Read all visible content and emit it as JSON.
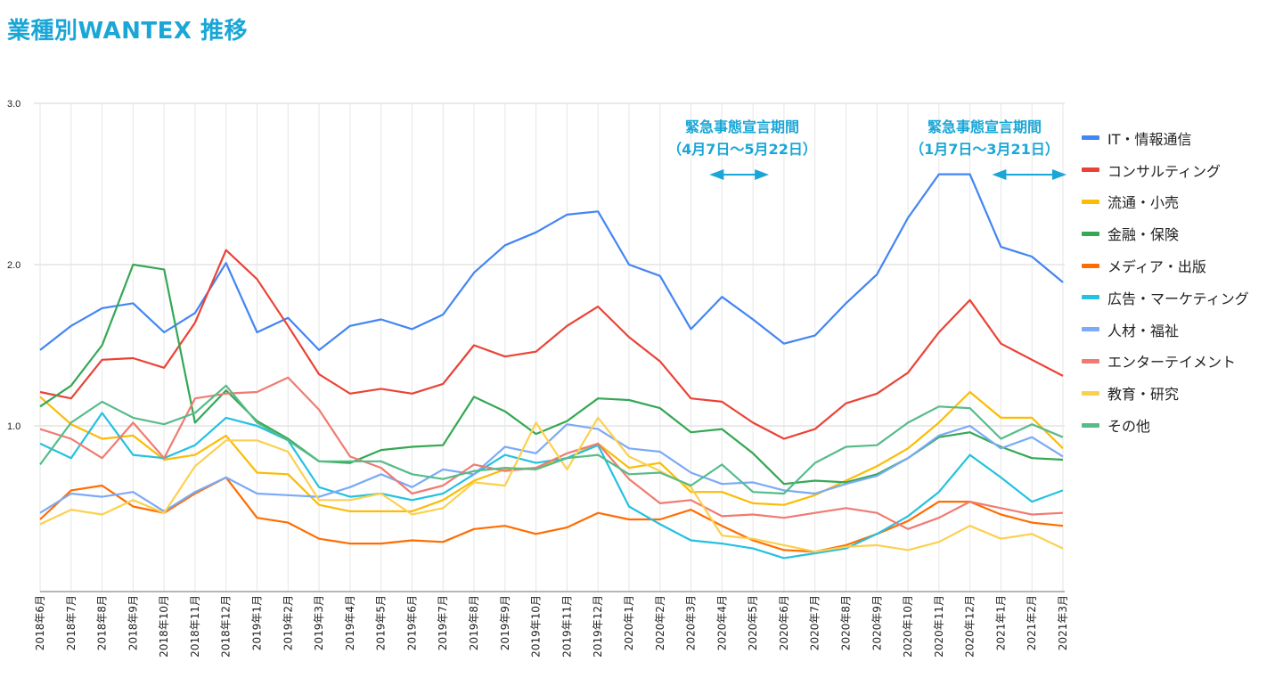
{
  "page": {
    "title": "業種別WANTEX 推移"
  },
  "annotations": [
    {
      "title": "緊急事態宣言期間",
      "period": "（4月7日〜5月22日）",
      "arrow_from": "2020年4月",
      "arrow_to": "2020年5月"
    },
    {
      "title": "緊急事態宣言期間",
      "period": "（1月7日〜3月21日）",
      "arrow_from": "2021年1月",
      "arrow_to": "2021年3月"
    }
  ],
  "chart_data": {
    "type": "line",
    "title": "業種別WANTEX 推移",
    "xlabel": "",
    "ylabel": "",
    "ylim": [
      0,
      3.0
    ],
    "yticks": [
      "3.0",
      "2.0",
      "1.0"
    ],
    "ytick_values": [
      3.0,
      2.0,
      1.0
    ],
    "grid": true,
    "legend_position": "right",
    "x": [
      "2018年6月",
      "2018年7月",
      "2018年8月",
      "2018年9月",
      "2018年10月",
      "2018年11月",
      "2018年12月",
      "2019年1月",
      "2019年2月",
      "2019年3月",
      "2019年4月",
      "2019年5月",
      "2019年6月",
      "2019年7月",
      "2019年8月",
      "2019年9月",
      "2019年10月",
      "2019年11月",
      "2019年12月",
      "2020年1月",
      "2020年2月",
      "2020年3月",
      "2020年4月",
      "2020年5月",
      "2020年6月",
      "2020年7月",
      "2020年8月",
      "2020年9月",
      "2020年10月",
      "2020年11月",
      "2020年12月",
      "2021年1月",
      "2021年2月",
      "2021年3月"
    ],
    "series": [
      {
        "name": "IT・情報通信",
        "color": "#4285f4",
        "values": [
          1.47,
          1.62,
          1.73,
          1.76,
          1.58,
          1.7,
          2.01,
          1.58,
          1.67,
          1.47,
          1.62,
          1.66,
          1.6,
          1.69,
          1.95,
          2.12,
          2.2,
          2.31,
          2.33,
          2.0,
          1.93,
          1.6,
          1.8,
          1.66,
          1.51,
          1.56,
          1.76,
          1.94,
          2.29,
          2.56,
          2.56,
          2.11,
          2.05,
          1.89
        ]
      },
      {
        "name": "コンサルティング",
        "color": "#ea4335",
        "values": [
          1.21,
          1.17,
          1.41,
          1.42,
          1.36,
          1.64,
          2.09,
          1.91,
          1.62,
          1.32,
          1.2,
          1.23,
          1.2,
          1.26,
          1.5,
          1.43,
          1.46,
          1.62,
          1.74,
          1.55,
          1.4,
          1.17,
          1.15,
          1.02,
          0.92,
          0.98,
          1.14,
          1.2,
          1.33,
          1.58,
          1.78,
          1.51,
          1.41,
          1.31
        ]
      },
      {
        "name": "流通・小売",
        "color": "#fbbc04",
        "values": [
          1.18,
          1.01,
          0.92,
          0.94,
          0.79,
          0.82,
          0.94,
          0.71,
          0.7,
          0.51,
          0.47,
          0.47,
          0.47,
          0.54,
          0.66,
          0.73,
          0.74,
          0.8,
          0.89,
          0.74,
          0.77,
          0.59,
          0.59,
          0.52,
          0.51,
          0.57,
          0.66,
          0.75,
          0.86,
          1.02,
          1.21,
          1.05,
          1.05,
          0.86
        ]
      },
      {
        "name": "金融・保険",
        "color": "#34a853",
        "values": [
          1.12,
          1.25,
          1.5,
          2.0,
          1.97,
          1.02,
          1.22,
          1.03,
          0.92,
          0.78,
          0.77,
          0.85,
          0.87,
          0.88,
          1.18,
          1.09,
          0.95,
          1.03,
          1.17,
          1.16,
          1.11,
          0.96,
          0.98,
          0.83,
          0.64,
          0.66,
          0.65,
          0.7,
          0.8,
          0.93,
          0.96,
          0.87,
          0.8,
          0.79
        ]
      },
      {
        "name": "メディア・出版",
        "color": "#ff6d01",
        "values": [
          0.42,
          0.6,
          0.63,
          0.5,
          0.46,
          0.58,
          0.68,
          0.43,
          0.4,
          0.3,
          0.27,
          0.27,
          0.29,
          0.28,
          0.36,
          0.38,
          0.33,
          0.37,
          0.46,
          0.42,
          0.42,
          0.48,
          0.38,
          0.29,
          0.23,
          0.22,
          0.26,
          0.33,
          0.41,
          0.53,
          0.53,
          0.45,
          0.4,
          0.38
        ]
      },
      {
        "name": "広告・マーケティング",
        "color": "#24c1e0",
        "values": [
          0.89,
          0.8,
          1.08,
          0.82,
          0.8,
          0.88,
          1.05,
          1.0,
          0.91,
          0.62,
          0.56,
          0.58,
          0.54,
          0.58,
          0.7,
          0.82,
          0.77,
          0.8,
          0.88,
          0.5,
          0.39,
          0.29,
          0.27,
          0.24,
          0.18,
          0.21,
          0.24,
          0.33,
          0.44,
          0.59,
          0.82,
          0.68,
          0.53,
          0.6
        ]
      },
      {
        "name": "人材・福祉",
        "color": "#7baaf7",
        "values": [
          0.46,
          0.58,
          0.56,
          0.59,
          0.47,
          0.59,
          0.68,
          0.58,
          0.57,
          0.56,
          0.62,
          0.7,
          0.62,
          0.73,
          0.7,
          0.87,
          0.83,
          1.01,
          0.98,
          0.86,
          0.84,
          0.71,
          0.64,
          0.65,
          0.6,
          0.58,
          0.64,
          0.69,
          0.8,
          0.94,
          1.0,
          0.86,
          0.93,
          0.81
        ]
      },
      {
        "name": "エンターテイメント",
        "color": "#f07b72",
        "values": [
          0.98,
          0.92,
          0.8,
          1.02,
          0.8,
          1.17,
          1.2,
          1.21,
          1.3,
          1.1,
          0.81,
          0.74,
          0.58,
          0.63,
          0.76,
          0.72,
          0.74,
          0.83,
          0.89,
          0.67,
          0.52,
          0.54,
          0.44,
          0.45,
          0.43,
          0.46,
          0.49,
          0.46,
          0.36,
          0.43,
          0.53,
          0.49,
          0.45,
          0.46
        ]
      },
      {
        "name": "教育・研究",
        "color": "#fcd04f",
        "values": [
          0.39,
          0.48,
          0.45,
          0.54,
          0.46,
          0.75,
          0.91,
          0.91,
          0.84,
          0.54,
          0.54,
          0.58,
          0.45,
          0.49,
          0.65,
          0.63,
          1.02,
          0.73,
          1.05,
          0.81,
          0.72,
          0.62,
          0.32,
          0.3,
          0.26,
          0.22,
          0.25,
          0.26,
          0.23,
          0.28,
          0.38,
          0.3,
          0.33,
          0.24
        ]
      },
      {
        "name": "その他",
        "color": "#57bb8a",
        "values": [
          0.76,
          1.02,
          1.15,
          1.05,
          1.01,
          1.08,
          1.25,
          1.02,
          0.91,
          0.78,
          0.78,
          0.78,
          0.7,
          0.67,
          0.72,
          0.74,
          0.73,
          0.8,
          0.82,
          0.7,
          0.71,
          0.63,
          0.76,
          0.59,
          0.58,
          0.77,
          0.87,
          0.88,
          1.02,
          1.12,
          1.11,
          0.92,
          1.01,
          0.93
        ]
      }
    ]
  }
}
